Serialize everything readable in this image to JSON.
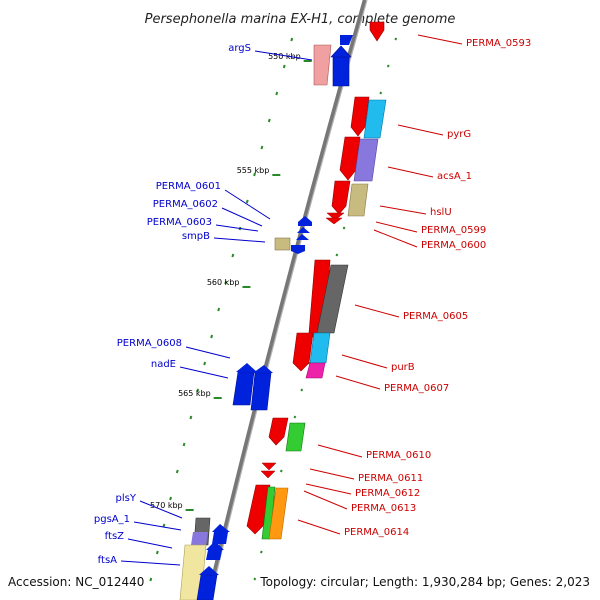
{
  "title": "Persephonella marina EX-H1, complete genome",
  "accession": "Accession: NC_012440",
  "topology": "Topology: circular; Length: 1,930,284 bp; Genes: 2,023",
  "colors": {
    "left_label": "#0000cc",
    "right_label": "#cc0000",
    "tick": "#2a8a2a"
  },
  "kbp_labels": [
    "550 kbp",
    "555 kbp",
    "560 kbp",
    "565 kbp",
    "570 kbp"
  ],
  "left_labels": [
    "argS",
    "PERMA_0601",
    "PERMA_0602",
    "PERMA_0603",
    "smpB",
    "PERMA_0608",
    "nadE",
    "plsY",
    "pgsA_1",
    "ftsZ",
    "ftsA"
  ],
  "right_labels": [
    "PERMA_0593",
    "pyrG",
    "acsA_1",
    "hslU",
    "PERMA_0599",
    "PERMA_0600",
    "PERMA_0605",
    "purB",
    "PERMA_0607",
    "PERMA_0610",
    "PERMA_0611",
    "PERMA_0612",
    "PERMA_0613",
    "PERMA_0614"
  ]
}
